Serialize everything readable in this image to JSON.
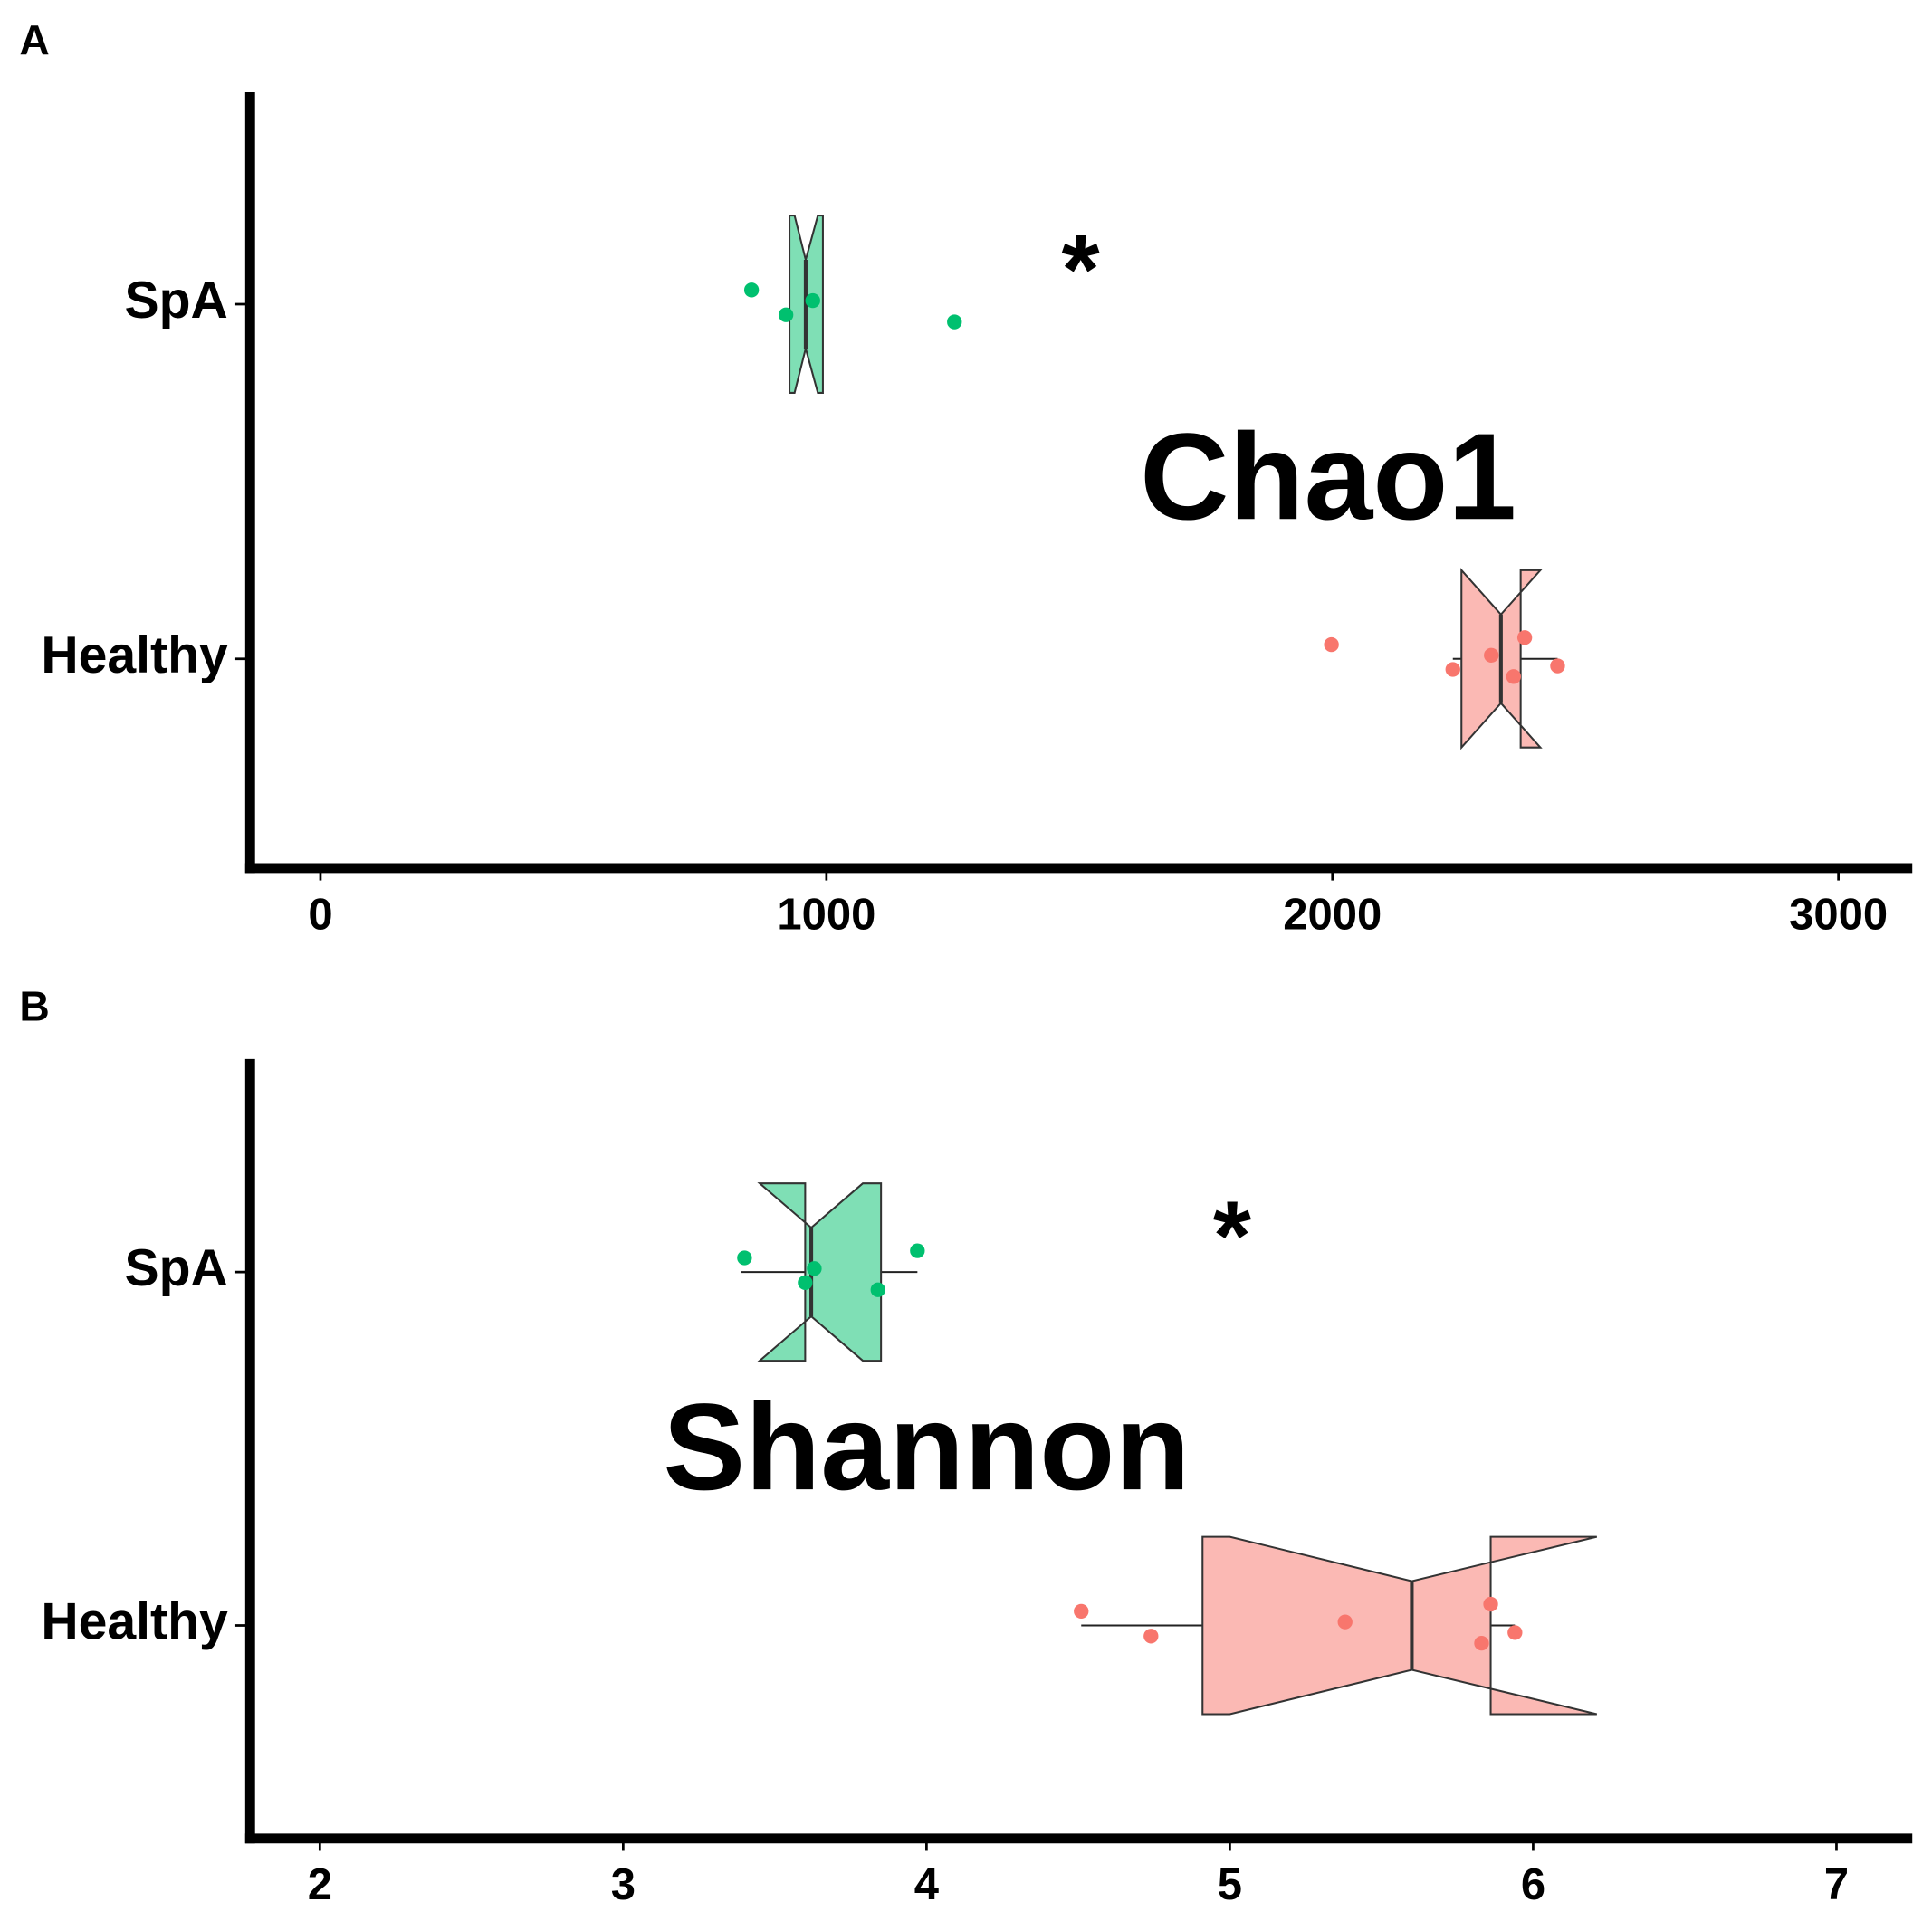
{
  "chart_data": [
    {
      "type": "boxplot",
      "panel_label": "A",
      "annotations": [
        {
          "text": "*"
        },
        {
          "text": "Chao1"
        }
      ],
      "categories": [
        "SpA",
        "Healthy"
      ],
      "xlim": [
        -139,
        3146
      ],
      "xticks": [
        0,
        1000,
        2000,
        3000
      ],
      "colors": [
        "#00c06f",
        "#f8766d"
      ],
      "fills": [
        "#7fdfb5",
        "#fbb9b4"
      ],
      "boxes": [
        {
          "whislo": 927,
          "q1": 927,
          "notchlo": 937,
          "median": 959,
          "notchhi": 983,
          "q3": 993,
          "whishi": 993,
          "points": [
            852,
            920,
            973,
            1253
          ]
        },
        {
          "whislo": 2238,
          "q1": 2255,
          "notchlo": 2255,
          "median": 2333,
          "notchhi": 2411,
          "q3": 2372,
          "whishi": 2445,
          "points": [
            1998,
            2238,
            2314,
            2358,
            2380,
            2445
          ]
        }
      ]
    },
    {
      "type": "boxplot",
      "panel_label": "B",
      "annotations": [
        {
          "text": "*"
        },
        {
          "text": "Shannon"
        }
      ],
      "categories": [
        "SpA",
        "Healthy"
      ],
      "xlim": [
        1.77,
        7.25
      ],
      "xticks": [
        2,
        3,
        4,
        5,
        6,
        7
      ],
      "colors": [
        "#00c06f",
        "#f8766d"
      ],
      "fills": [
        "#7fdfb5",
        "#fbb9b4"
      ],
      "boxes": [
        {
          "whislo": 3.39,
          "q1": 3.6,
          "notchlo": 3.45,
          "median": 3.62,
          "notchhi": 3.79,
          "q3": 3.85,
          "whishi": 3.97,
          "points": [
            3.4,
            3.6,
            3.63,
            3.84,
            3.97
          ]
        },
        {
          "whislo": 4.51,
          "q1": 4.91,
          "notchlo": 5.0,
          "median": 5.6,
          "notchhi": 6.21,
          "q3": 5.86,
          "whishi": 5.94,
          "points": [
            4.51,
            4.74,
            5.38,
            5.83,
            5.86,
            5.94
          ]
        }
      ]
    }
  ]
}
